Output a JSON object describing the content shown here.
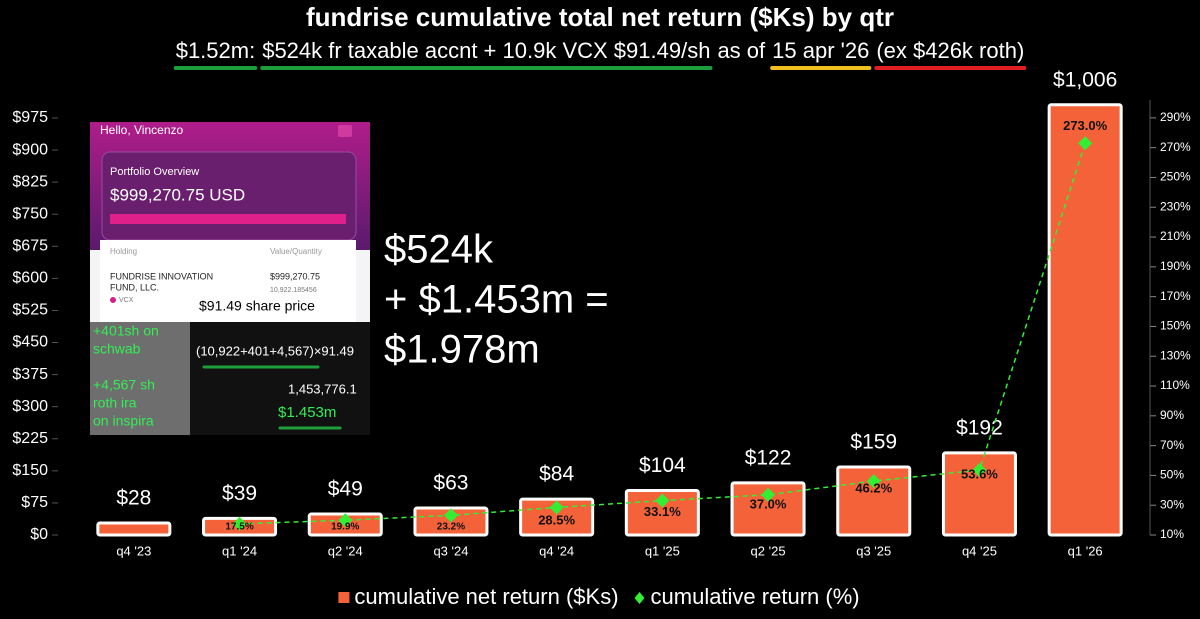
{
  "chart_data": {
    "type": "combo",
    "title": "fundrise cumulative total net return ($Ks) by qtr",
    "subtitle_parts": [
      {
        "text": "$1.52m:",
        "underline": "#1e9e3a"
      },
      {
        "text": "$524k fr taxable accnt + 10.9k VCX $91.49/sh",
        "underline": "#1e9e3a"
      },
      {
        "text": "as of"
      },
      {
        "text": "15 apr '26",
        "underline": "#f0c020"
      },
      {
        "text": "(ex $426k roth)",
        "underline": "#e02020"
      }
    ],
    "categories": [
      "q4 '23",
      "q1 '24",
      "q2 '24",
      "q3 '24",
      "q4 '24",
      "q1 '25",
      "q2 '25",
      "q3 '25",
      "q4 '25",
      "q1 '26"
    ],
    "series": [
      {
        "name": "cumulative net return ($Ks)",
        "type": "bar",
        "color": "#f4623a",
        "values": [
          28,
          39,
          49,
          63,
          84,
          104,
          122,
          159,
          192,
          1006
        ],
        "value_labels": [
          "$28",
          "$39",
          "$49",
          "$63",
          "$84",
          "$104",
          "$122",
          "$159",
          "$192",
          "$1,006"
        ]
      },
      {
        "name": "cumulative return (%)",
        "type": "line",
        "axis": "y2",
        "color": "#33ee33",
        "values": [
          null,
          17.5,
          19.9,
          23.2,
          28.5,
          33.1,
          37.0,
          46.2,
          53.6,
          273.0
        ],
        "value_labels": [
          null,
          "17.5%",
          "19.9%",
          "23.2%",
          "28.5%",
          "33.1%",
          "37.0%",
          "46.2%",
          "53.6%",
          "273.0%"
        ]
      }
    ],
    "ylim": [
      0,
      1017
    ],
    "yticks": [
      {
        "value": 0,
        "label": "$0"
      },
      {
        "value": 75,
        "label": "$75"
      },
      {
        "value": 150,
        "label": "$150"
      },
      {
        "value": 225,
        "label": "$225"
      },
      {
        "value": 300,
        "label": "$300"
      },
      {
        "value": 375,
        "label": "$375"
      },
      {
        "value": 450,
        "label": "$450"
      },
      {
        "value": 525,
        "label": "$525"
      },
      {
        "value": 600,
        "label": "$600"
      },
      {
        "value": 675,
        "label": "$675"
      },
      {
        "value": 750,
        "label": "$750"
      },
      {
        "value": 825,
        "label": "$825"
      },
      {
        "value": 900,
        "label": "$900"
      },
      {
        "value": 975,
        "label": "$975"
      }
    ],
    "y2lim": [
      10,
      302
    ],
    "y2ticks": [
      {
        "value": 10,
        "label": "10%"
      },
      {
        "value": 30,
        "label": "30%"
      },
      {
        "value": 50,
        "label": "50%"
      },
      {
        "value": 70,
        "label": "70%"
      },
      {
        "value": 90,
        "label": "90%"
      },
      {
        "value": 110,
        "label": "110%"
      },
      {
        "value": 130,
        "label": "130%"
      },
      {
        "value": 150,
        "label": "150%"
      },
      {
        "value": 170,
        "label": "170%"
      },
      {
        "value": 190,
        "label": "190%"
      },
      {
        "value": 210,
        "label": "210%"
      },
      {
        "value": 230,
        "label": "230%"
      },
      {
        "value": 250,
        "label": "250%"
      },
      {
        "value": 270,
        "label": "270%"
      },
      {
        "value": 290,
        "label": "290%"
      }
    ],
    "annotation_lines": [
      "$524k",
      "+ $1.453m =",
      "$1.978m"
    ]
  },
  "screenshot_inset": {
    "greeting": "Hello, Vincenzo",
    "card_title": "Portfolio Overview",
    "balance": "$999,270.75 USD",
    "col_holding": "Holding",
    "col_value": "Value/Quantity",
    "fund_lines": [
      "FUNDRISE INNOVATION",
      "FUND, LLC."
    ],
    "ticker": "VCX",
    "fund_value": "$999,270.75",
    "fund_quantity": "10,922.185456",
    "price_note": "$91.49 share price",
    "schwab_lines": [
      "+401sh on",
      "schwab"
    ],
    "roth_lines": [
      "+4,567 sh",
      "roth ira",
      "on inspira"
    ],
    "formula": "(10,922+401+4,567)×91.49",
    "product": "1,453,776.1",
    "product_short": "$1.453m"
  }
}
